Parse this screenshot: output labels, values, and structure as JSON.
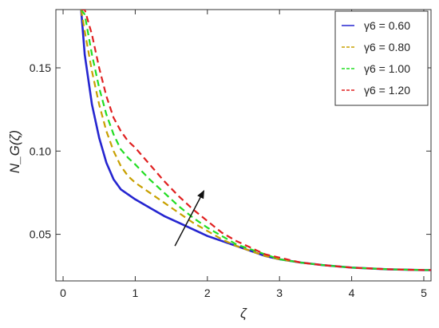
{
  "chart_data": {
    "type": "line",
    "xlabel": "ζ",
    "ylabel": "N_G(ζ)",
    "xlim": [
      -0.1,
      5.1
    ],
    "ylim": [
      0.022,
      0.185
    ],
    "xticks": [
      0,
      1,
      2,
      3,
      4,
      5
    ],
    "xtick_labels": [
      "0",
      "1",
      "2",
      "3",
      "4",
      "5"
    ],
    "yticks": [
      0.05,
      0.1,
      0.15
    ],
    "ytick_labels": [
      "0.05",
      "0.10",
      "0.15"
    ],
    "grid": false,
    "legend_position": "top-right",
    "x": [
      0.25,
      0.3,
      0.4,
      0.5,
      0.6,
      0.7,
      0.8,
      0.9,
      1.0,
      1.2,
      1.4,
      1.6,
      1.8,
      2.0,
      2.2,
      2.4,
      2.6,
      2.8,
      3.0,
      3.3,
      3.6,
      4.0,
      4.5,
      5.0,
      5.1
    ],
    "series": [
      {
        "name": "γ6 = 0.60",
        "color": "#2525d0",
        "dashed": false,
        "values": [
          0.185,
          0.158,
          0.128,
          0.108,
          0.093,
          0.083,
          0.077,
          0.074,
          0.071,
          0.066,
          0.061,
          0.057,
          0.053,
          0.049,
          0.046,
          0.043,
          0.04,
          0.037,
          0.035,
          0.033,
          0.0315,
          0.03,
          0.029,
          0.0285,
          0.0285
        ]
      },
      {
        "name": "γ6 = 0.80",
        "color": "#c8a000",
        "dashed": true,
        "values": [
          0.185,
          0.172,
          0.148,
          0.128,
          0.112,
          0.1,
          0.091,
          0.085,
          0.081,
          0.075,
          0.069,
          0.063,
          0.057,
          0.052,
          0.047,
          0.043,
          0.04,
          0.037,
          0.035,
          0.033,
          0.0315,
          0.03,
          0.029,
          0.0285,
          0.0285
        ]
      },
      {
        "name": "γ6 = 1.00",
        "color": "#22dd22",
        "dashed": true,
        "values": [
          0.185,
          0.182,
          0.158,
          0.138,
          0.122,
          0.11,
          0.101,
          0.096,
          0.092,
          0.083,
          0.075,
          0.067,
          0.06,
          0.054,
          0.049,
          0.044,
          0.041,
          0.038,
          0.035,
          0.033,
          0.0315,
          0.03,
          0.029,
          0.0285,
          0.0285
        ]
      },
      {
        "name": "γ6 = 1.20",
        "color": "#e02020",
        "dashed": true,
        "values": [
          0.185,
          0.185,
          0.17,
          0.15,
          0.133,
          0.12,
          0.112,
          0.106,
          0.102,
          0.092,
          0.082,
          0.073,
          0.065,
          0.058,
          0.051,
          0.046,
          0.042,
          0.038,
          0.036,
          0.033,
          0.0315,
          0.03,
          0.029,
          0.0285,
          0.0285
        ]
      }
    ],
    "annotations": [
      {
        "type": "arrow",
        "from": [
          1.55,
          0.043
        ],
        "to": [
          1.95,
          0.076
        ],
        "color": "#111111"
      }
    ]
  }
}
